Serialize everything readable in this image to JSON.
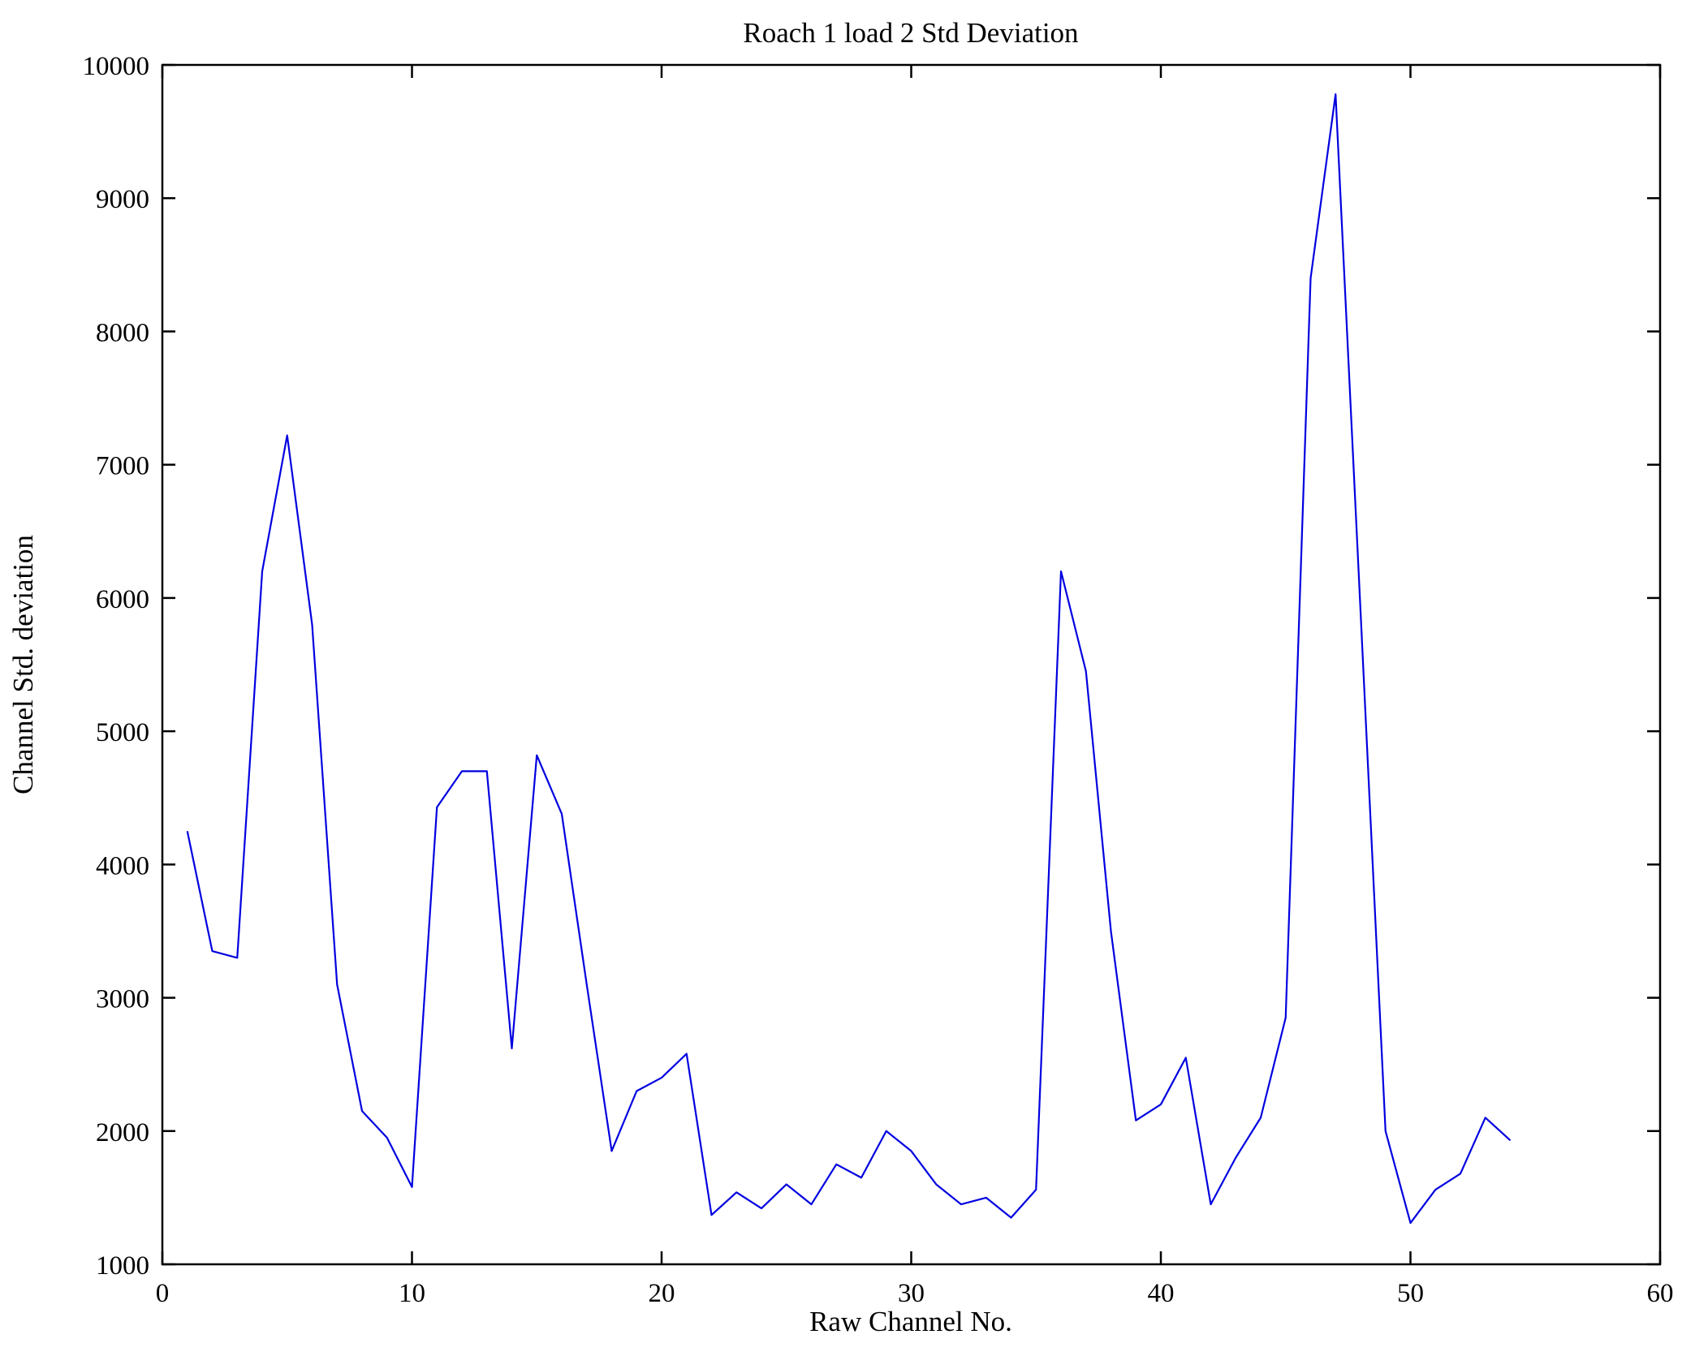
{
  "figure": {
    "background": "#ffffff"
  },
  "chart_data": {
    "type": "line",
    "title": "Roach 1 load 2 Std Deviation",
    "xlabel": "Raw Channel No.",
    "ylabel": "Channel Std. deviation",
    "xlim": [
      0,
      60
    ],
    "ylim": [
      1000,
      10000
    ],
    "xticks": [
      0,
      10,
      20,
      30,
      40,
      50,
      60
    ],
    "yticks": [
      1000,
      2000,
      3000,
      4000,
      5000,
      6000,
      7000,
      8000,
      9000,
      10000
    ],
    "grid": false,
    "legend": "none",
    "line_color": "#0000E0",
    "axis_color": "#000000",
    "series": [
      {
        "name": "Channel Std deviation",
        "x": [
          1,
          2,
          3,
          4,
          5,
          6,
          7,
          8,
          9,
          10,
          11,
          12,
          13,
          14,
          15,
          16,
          17,
          18,
          19,
          20,
          21,
          22,
          23,
          24,
          25,
          26,
          27,
          28,
          29,
          30,
          31,
          32,
          33,
          34,
          35,
          36,
          37,
          38,
          39,
          40,
          41,
          42,
          43,
          44,
          45,
          46,
          47,
          48,
          49,
          50,
          51,
          52,
          53,
          54
        ],
        "y": [
          4250,
          3350,
          3300,
          6200,
          7220,
          5800,
          3100,
          2150,
          1950,
          1580,
          4430,
          4700,
          4700,
          2620,
          4820,
          4380,
          3100,
          1850,
          2300,
          2400,
          2580,
          1370,
          1540,
          1420,
          1600,
          1450,
          1750,
          1650,
          2000,
          1850,
          1600,
          1450,
          1500,
          1350,
          1560,
          6200,
          5450,
          3500,
          2080,
          2200,
          2550,
          1450,
          1800,
          2100,
          2850,
          8400,
          9780,
          5900,
          2000,
          1310,
          1560,
          1680,
          2100,
          1930
        ]
      }
    ]
  }
}
